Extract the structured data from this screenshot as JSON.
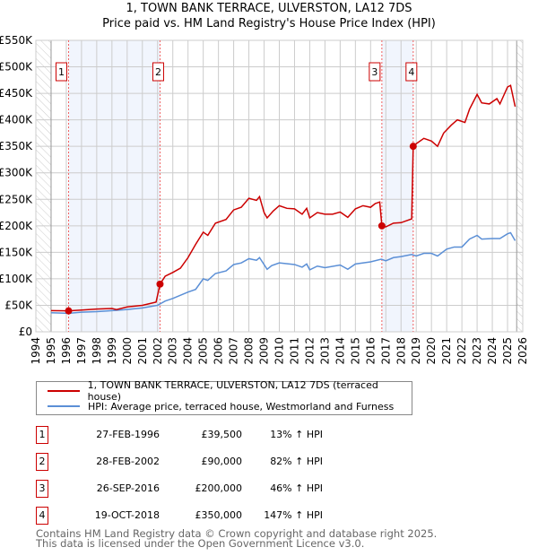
{
  "chart_data": {
    "type": "line",
    "title": "1, TOWN BANK TERRACE, ULVERSTON, LA12 7DS",
    "subtitle": "Price paid vs. HM Land Registry's House Price Index (HPI)",
    "xlim": [
      1994,
      2026
    ],
    "ylim": [
      0,
      550000
    ],
    "x_ticks": [
      "1994",
      "1995",
      "1996",
      "1997",
      "1998",
      "1999",
      "2000",
      "2001",
      "2002",
      "2003",
      "2004",
      "2005",
      "2006",
      "2007",
      "2008",
      "2009",
      "2010",
      "2011",
      "2012",
      "2013",
      "2014",
      "2015",
      "2016",
      "2017",
      "2018",
      "2019",
      "2020",
      "2021",
      "2022",
      "2023",
      "2024",
      "2025",
      "2026"
    ],
    "y_ticks": [
      {
        "v": 0,
        "l": "£0"
      },
      {
        "v": 50000,
        "l": "£50K"
      },
      {
        "v": 100000,
        "l": "£100K"
      },
      {
        "v": 150000,
        "l": "£150K"
      },
      {
        "v": 200000,
        "l": "£200K"
      },
      {
        "v": 250000,
        "l": "£250K"
      },
      {
        "v": 300000,
        "l": "£300K"
      },
      {
        "v": 350000,
        "l": "£350K"
      },
      {
        "v": 400000,
        "l": "£400K"
      },
      {
        "v": 450000,
        "l": "£450K"
      },
      {
        "v": 500000,
        "l": "£500K"
      },
      {
        "v": 550000,
        "l": "£550K"
      }
    ],
    "grid": true,
    "data_start": 1995,
    "data_end": 2025.6,
    "series": [
      {
        "name": "1, TOWN BANK TERRACE, ULVERSTON, LA12 7DS (terraced house)",
        "color": "#cc0000",
        "x": [
          1995,
          1996.15,
          1997,
          1998,
          1999,
          1999.3,
          2000,
          2001,
          2001.9,
          2002.16,
          2002.5,
          2003,
          2003.5,
          2004,
          2004.5,
          2005,
          2005.3,
          2005.8,
          2006.5,
          2007,
          2007.5,
          2008,
          2008.5,
          2008.7,
          2009,
          2009.2,
          2009.6,
          2010,
          2010.5,
          2011,
          2011.5,
          2011.8,
          2012,
          2012.5,
          2013,
          2013.5,
          2014,
          2014.5,
          2015,
          2015.5,
          2016,
          2016.3,
          2016.6,
          2016.74,
          2017,
          2017.5,
          2018,
          2018.7,
          2018.8,
          2019,
          2019.5,
          2020,
          2020.4,
          2020.8,
          2021.3,
          2021.7,
          2022.2,
          2022.5,
          2023,
          2023.3,
          2023.8,
          2024.3,
          2024.5,
          2025,
          2025.2,
          2025.5
        ],
        "y": [
          40000,
          39500,
          41000,
          43000,
          44000,
          42000,
          47000,
          50000,
          56000,
          90000,
          105000,
          112000,
          120000,
          140000,
          165000,
          188000,
          182000,
          205000,
          212000,
          230000,
          235000,
          252000,
          248000,
          255000,
          225000,
          215000,
          228000,
          238000,
          233000,
          232000,
          222000,
          233000,
          215000,
          225000,
          222000,
          222000,
          226000,
          216000,
          232000,
          238000,
          235000,
          242000,
          245000,
          200000,
          198000,
          205000,
          206000,
          213000,
          350000,
          355000,
          365000,
          360000,
          350000,
          375000,
          390000,
          400000,
          395000,
          420000,
          448000,
          432000,
          430000,
          440000,
          430000,
          462000,
          465000,
          425000
        ]
      },
      {
        "name": "HPI: Average price, terraced house, Westmorland and Furness",
        "color": "#5b8fd6",
        "x": [
          1995,
          1996.15,
          1997,
          1998,
          1999,
          2000,
          2001,
          2002,
          2002.5,
          2003,
          2004,
          2004.5,
          2005,
          2005.3,
          2005.8,
          2006.5,
          2007,
          2007.5,
          2008,
          2008.5,
          2008.7,
          2009.2,
          2009.5,
          2010,
          2011,
          2011.5,
          2011.8,
          2012,
          2012.5,
          2013,
          2014,
          2014.5,
          2015,
          2016,
          2016.7,
          2017,
          2017.5,
          2018,
          2018.7,
          2019,
          2019.5,
          2020,
          2020.4,
          2021,
          2021.5,
          2022,
          2022.5,
          2023,
          2023.3,
          2024,
          2024.5,
          2025,
          2025.2,
          2025.5
        ],
        "y": [
          36000,
          35000,
          37000,
          38000,
          40000,
          42000,
          45000,
          50000,
          58000,
          63000,
          75000,
          80000,
          100000,
          97000,
          110000,
          115000,
          127000,
          130000,
          138000,
          135000,
          140000,
          118000,
          125000,
          130000,
          127000,
          122000,
          128000,
          117000,
          124000,
          121000,
          126000,
          118000,
          128000,
          132000,
          137000,
          134000,
          140000,
          142000,
          146000,
          143000,
          148000,
          148000,
          143000,
          156000,
          160000,
          160000,
          175000,
          182000,
          175000,
          176000,
          176000,
          185000,
          187000,
          172000
        ]
      }
    ],
    "sales": [
      {
        "n": "1",
        "x": 1996.15,
        "y": 39500,
        "date": "27-FEB-1996",
        "price": "£39,500",
        "hpi": "13% ↑ HPI"
      },
      {
        "n": "2",
        "x": 2002.16,
        "y": 90000,
        "date": "28-FEB-2002",
        "price": "£90,000",
        "hpi": "82% ↑ HPI"
      },
      {
        "n": "3",
        "x": 2016.74,
        "y": 200000,
        "date": "26-SEP-2016",
        "price": "£200,000",
        "hpi": "46% ↑ HPI"
      },
      {
        "n": "4",
        "x": 2018.8,
        "y": 350000,
        "date": "19-OCT-2018",
        "price": "£350,000",
        "hpi": "147% ↑ HPI"
      }
    ],
    "shaded": [
      [
        1996.15,
        2002.16
      ],
      [
        2016.74,
        2018.8
      ]
    ]
  },
  "footer": {
    "line1": "Contains HM Land Registry data © Crown copyright and database right 2025.",
    "line2": "This data is licensed under the Open Government Licence v3.0."
  }
}
